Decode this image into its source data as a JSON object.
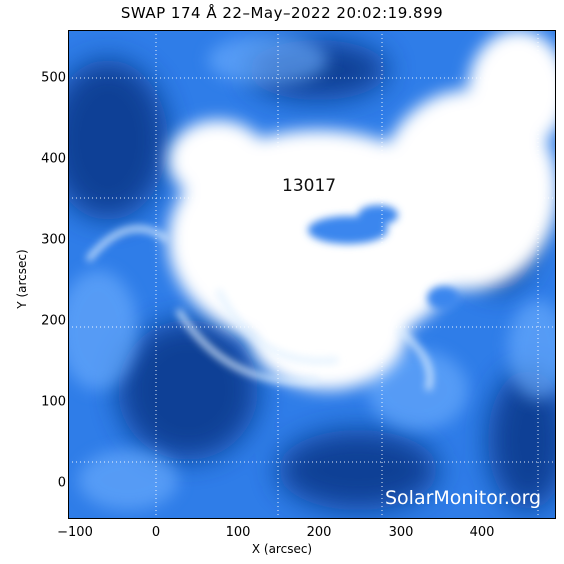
{
  "header": {
    "title": "SWAP 174 Å 22–May–2022 20:02:19.899"
  },
  "axes": {
    "xlabel": "X (arcsec)",
    "ylabel": "Y (arcsec)",
    "xticks": [
      "−100",
      "0",
      "100",
      "200",
      "300",
      "400"
    ],
    "yticks": [
      "0",
      "100",
      "200",
      "300",
      "400",
      "500"
    ]
  },
  "annotation": {
    "region": "13017"
  },
  "watermark": {
    "text": "SolarMonitor.org"
  },
  "colors": {
    "bg_dark": "#0a3f93",
    "mid": "#2b78e8",
    "bright": "#ffffff"
  }
}
